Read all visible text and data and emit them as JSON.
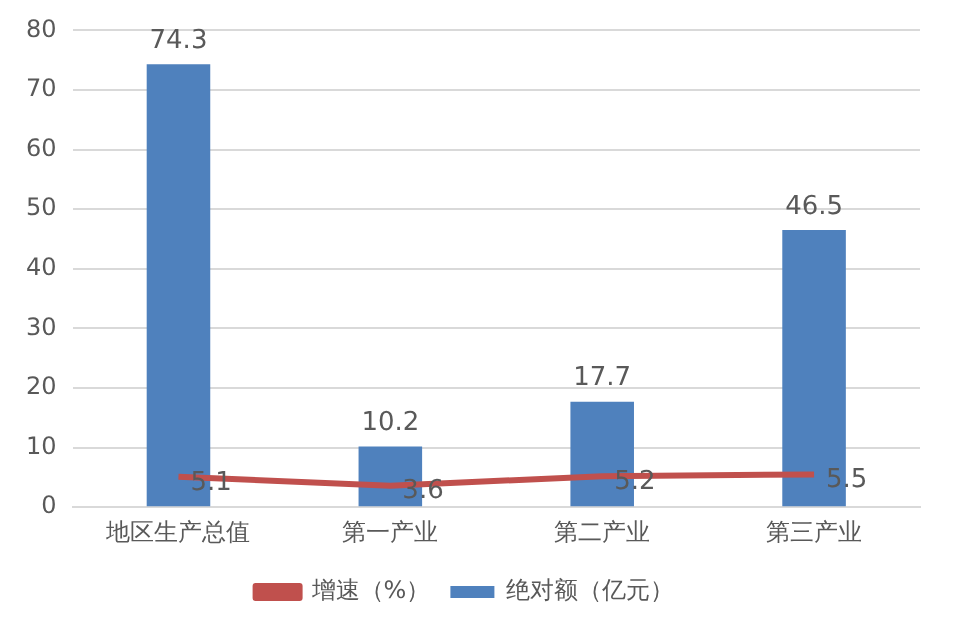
{
  "chart_data": {
    "type": "bar",
    "categories": [
      "地区生产总值",
      "第一产业",
      "第二产业",
      "第三产业"
    ],
    "series": [
      {
        "name": "绝对额（亿元）",
        "color": "#4f81bd",
        "values": [
          74.3,
          10.2,
          17.7,
          46.5
        ]
      },
      {
        "name": "增速（%）",
        "type": "line",
        "color": "#c0504d",
        "values": [
          5.1,
          3.6,
          5.2,
          5.5
        ]
      }
    ],
    "ylim": [
      0,
      80
    ],
    "yticks": [
      0,
      10,
      20,
      30,
      40,
      50,
      60,
      70,
      80
    ],
    "grid": "y",
    "legend": "bottom",
    "data_labels": true,
    "marker": "none"
  }
}
